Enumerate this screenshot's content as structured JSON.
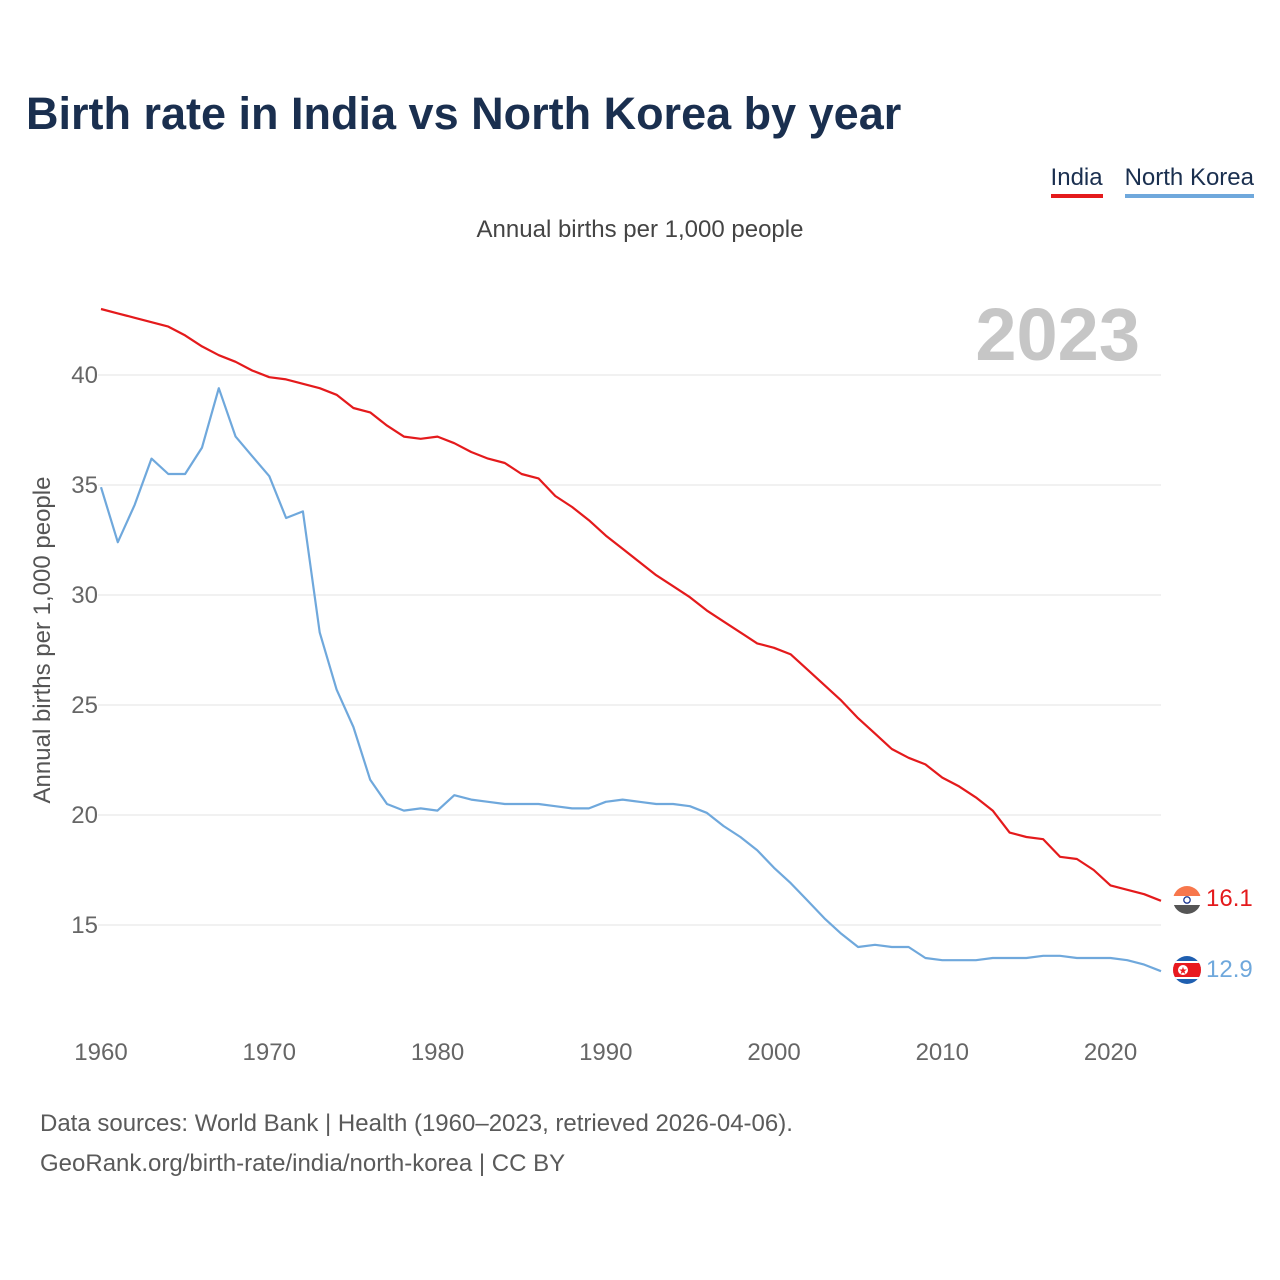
{
  "title": "Birth rate in India vs North Korea by year",
  "subtitle": "Annual births per 1,000 people",
  "year_label": "2023",
  "sources": {
    "line1": "Data sources: World Bank | Health (1960–2023, retrieved 2026-04-06).",
    "line2": "GeoRank.org/birth-rate/india/north-korea | CC BY"
  },
  "chart_data": {
    "type": "line",
    "title": "Birth rate in India vs North Korea by year",
    "ylabel": "Annual births per 1,000 people",
    "xlabel": "",
    "xlim": [
      1960,
      2023
    ],
    "ylim": [
      11,
      44
    ],
    "yticks": [
      15,
      20,
      25,
      30,
      35,
      40
    ],
    "xticks": [
      1960,
      1970,
      1980,
      1990,
      2000,
      2010,
      2020
    ],
    "grid": true,
    "legend": "top-right",
    "x": [
      1960,
      1961,
      1962,
      1963,
      1964,
      1965,
      1966,
      1967,
      1968,
      1969,
      1970,
      1971,
      1972,
      1973,
      1974,
      1975,
      1976,
      1977,
      1978,
      1979,
      1980,
      1981,
      1982,
      1983,
      1984,
      1985,
      1986,
      1987,
      1988,
      1989,
      1990,
      1991,
      1992,
      1993,
      1994,
      1995,
      1996,
      1997,
      1998,
      1999,
      2000,
      2001,
      2002,
      2003,
      2004,
      2005,
      2006,
      2007,
      2008,
      2009,
      2010,
      2011,
      2012,
      2013,
      2014,
      2015,
      2016,
      2017,
      2018,
      2019,
      2020,
      2021,
      2022,
      2023
    ],
    "series": [
      {
        "name": "India",
        "color": "#e41a1c",
        "end_label": "16.1",
        "values": [
          43.0,
          42.8,
          42.6,
          42.4,
          42.2,
          41.8,
          41.3,
          40.9,
          40.6,
          40.2,
          39.9,
          39.8,
          39.6,
          39.4,
          39.1,
          38.5,
          38.3,
          37.7,
          37.2,
          37.1,
          37.2,
          36.9,
          36.5,
          36.2,
          36.0,
          35.5,
          35.3,
          34.5,
          34.0,
          33.4,
          32.7,
          32.1,
          31.5,
          30.9,
          30.4,
          29.9,
          29.3,
          28.8,
          28.3,
          27.8,
          27.6,
          27.3,
          26.6,
          25.9,
          25.2,
          24.4,
          23.7,
          23.0,
          22.6,
          22.3,
          21.7,
          21.3,
          20.8,
          20.2,
          19.2,
          19.0,
          18.9,
          18.1,
          18.0,
          17.5,
          16.8,
          16.6,
          16.4,
          16.1
        ]
      },
      {
        "name": "North Korea",
        "color": "#6fa8dc",
        "end_label": "12.9",
        "values": [
          34.9,
          32.4,
          34.1,
          36.2,
          35.5,
          35.5,
          36.7,
          39.4,
          37.2,
          36.3,
          35.4,
          33.5,
          33.8,
          28.3,
          25.7,
          24.0,
          21.6,
          20.5,
          20.2,
          20.3,
          20.2,
          20.9,
          20.7,
          20.6,
          20.5,
          20.5,
          20.5,
          20.4,
          20.3,
          20.3,
          20.6,
          20.7,
          20.6,
          20.5,
          20.5,
          20.4,
          20.1,
          19.5,
          19.0,
          18.4,
          17.6,
          16.9,
          16.1,
          15.3,
          14.6,
          14.0,
          14.1,
          14.0,
          14.0,
          13.5,
          13.4,
          13.4,
          13.4,
          13.5,
          13.5,
          13.5,
          13.6,
          13.6,
          13.5,
          13.5,
          13.5,
          13.4,
          13.2,
          12.9
        ]
      }
    ]
  }
}
